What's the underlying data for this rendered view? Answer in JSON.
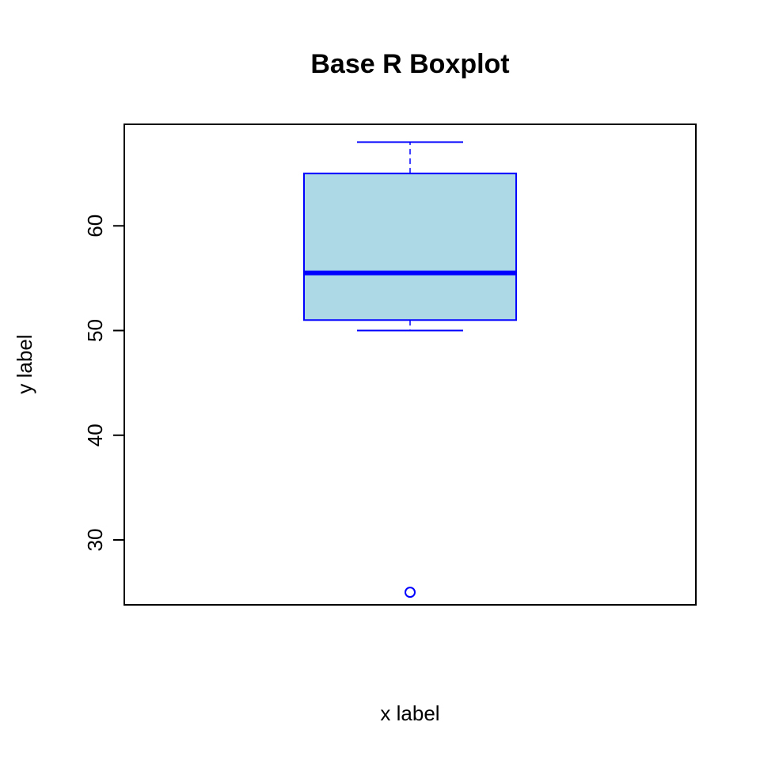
{
  "colors": {
    "box_fill": "#add8e6",
    "box_border": "#0000ff",
    "axis": "#000000",
    "background": "#ffffff"
  },
  "chart_data": {
    "type": "boxplot",
    "title": "Base R Boxplot",
    "xlabel": "x label",
    "ylabel": "y label",
    "ylim": [
      23.8,
      69.7
    ],
    "yticks": [
      30,
      40,
      50,
      60
    ],
    "ytick_labels": [
      "30",
      "40",
      "50",
      "60"
    ],
    "grid": false,
    "legend": "none",
    "series": [
      {
        "whisker_low": 50,
        "q1": 51,
        "median": 55.5,
        "q3": 65,
        "whisker_high": 68,
        "outliers": [
          25
        ]
      }
    ]
  }
}
